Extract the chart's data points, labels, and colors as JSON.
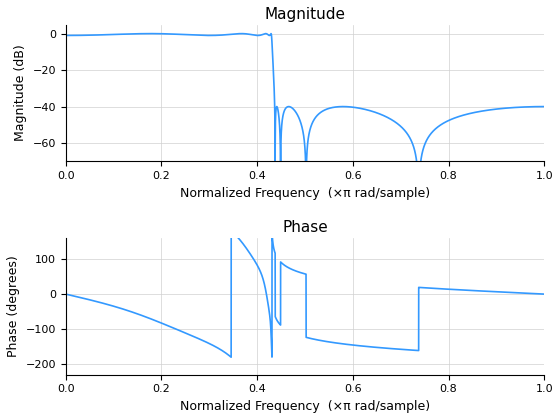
{
  "line_color": "#3399FF",
  "line_width": 1.2,
  "mag_title": "Magnitude",
  "mag_ylabel": "Magnitude (dB)",
  "mag_xlabel": "Normalized Frequency  (×π rad/sample)",
  "mag_ylim": [
    -70,
    5
  ],
  "mag_yticks": [
    0,
    -20,
    -40,
    -60
  ],
  "phase_title": "Phase",
  "phase_ylabel": "Phase (degrees)",
  "phase_xlabel": "Normalized Frequency  (×π rad/sample)",
  "phase_ylim": [
    -230,
    160
  ],
  "phase_yticks": [
    100,
    0,
    -100,
    -200
  ],
  "xlim": [
    0,
    1
  ],
  "xticks": [
    0,
    0.2,
    0.4,
    0.6,
    0.8,
    1.0
  ],
  "background_color": "#ffffff",
  "grid_color": "#d0d0d0"
}
